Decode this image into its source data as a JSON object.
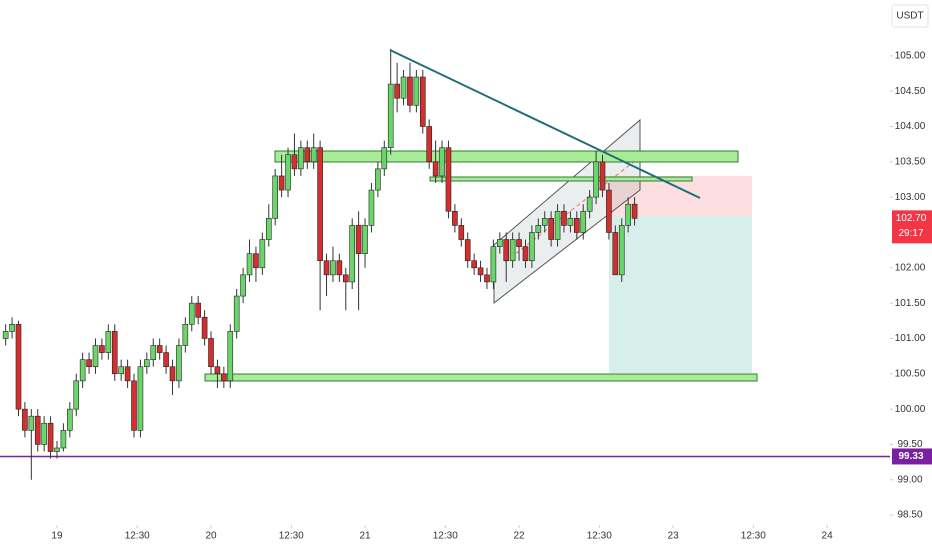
{
  "chart_data": {
    "type": "candlestick",
    "currency": "USDT",
    "up_color": "#6ad66a",
    "down_color": "#d32f2f",
    "x": [
      -8,
      -7,
      -6,
      -5,
      -4,
      -3,
      -2,
      -1,
      0,
      1,
      2,
      3,
      4,
      5,
      6,
      7,
      8,
      9,
      10,
      11,
      12,
      13,
      14,
      15,
      16,
      17,
      18,
      19,
      20,
      21,
      22,
      23,
      24,
      25,
      26,
      27,
      28,
      29,
      30,
      31,
      32,
      33,
      34,
      35,
      36,
      37,
      38,
      39,
      40,
      41,
      42,
      43,
      44,
      45,
      46,
      47,
      48,
      49,
      50,
      51,
      52,
      53,
      54,
      55,
      56,
      57,
      58,
      59,
      60,
      61,
      62,
      63,
      64,
      65,
      66,
      67,
      68,
      69,
      70,
      71,
      72,
      73,
      74,
      75,
      76,
      77,
      78,
      79,
      80,
      81,
      82,
      83,
      84,
      85,
      86,
      87,
      88,
      89,
      90
    ],
    "open": [
      101.0,
      101.1,
      101.2,
      100.0,
      99.7,
      99.9,
      99.5,
      99.8,
      99.4,
      99.45,
      99.7,
      100.0,
      100.4,
      100.7,
      100.6,
      100.9,
      100.8,
      101.1,
      100.5,
      100.6,
      100.4,
      99.7,
      100.6,
      100.7,
      100.9,
      100.8,
      100.6,
      100.4,
      100.9,
      101.2,
      101.5,
      101.3,
      101.0,
      100.6,
      100.5,
      100.4,
      101.1,
      101.6,
      101.9,
      102.2,
      102.0,
      102.4,
      102.7,
      103.3,
      103.1,
      103.6,
      103.4,
      103.7,
      103.5,
      103.7,
      102.1,
      101.9,
      102.1,
      101.9,
      101.8,
      102.6,
      102.2,
      102.6,
      103.1,
      103.4,
      103.7,
      104.6,
      104.4,
      104.7,
      104.3,
      104.7,
      104.0,
      103.5,
      103.3,
      103.7,
      102.8,
      102.6,
      102.4,
      102.1,
      102.0,
      101.9,
      101.8,
      102.3,
      102.4,
      102.1,
      102.4,
      102.3,
      102.1,
      102.5,
      102.6,
      102.7,
      102.4,
      102.8,
      102.6,
      102.7,
      102.5,
      102.8,
      103.0,
      103.5,
      103.1,
      102.5,
      101.9,
      102.6,
      102.9
    ],
    "high": [
      101.2,
      101.3,
      101.25,
      100.1,
      100.0,
      100.0,
      99.9,
      99.9,
      99.55,
      99.8,
      100.1,
      100.5,
      100.8,
      100.8,
      101.0,
      101.0,
      101.2,
      101.2,
      100.7,
      100.7,
      100.5,
      100.7,
      100.8,
      101.0,
      101.0,
      100.9,
      100.7,
      101.0,
      101.3,
      101.6,
      101.6,
      101.4,
      101.1,
      100.7,
      100.6,
      101.2,
      101.7,
      102.0,
      102.4,
      102.3,
      102.5,
      102.9,
      103.4,
      103.6,
      103.7,
      103.9,
      103.8,
      103.8,
      103.9,
      103.8,
      102.2,
      102.3,
      102.2,
      102.0,
      102.7,
      102.8,
      102.7,
      103.2,
      103.5,
      103.8,
      105.1,
      104.9,
      104.8,
      104.9,
      104.8,
      104.8,
      104.1,
      103.8,
      103.8,
      103.8,
      102.9,
      102.7,
      102.5,
      102.2,
      102.1,
      102.0,
      102.4,
      102.5,
      102.5,
      102.5,
      102.5,
      102.4,
      102.6,
      102.7,
      102.8,
      102.8,
      102.9,
      102.9,
      102.8,
      102.8,
      102.9,
      103.1,
      103.65,
      103.6,
      103.2,
      102.6,
      102.7,
      103.0,
      103.0
    ],
    "low": [
      100.9,
      101.0,
      99.9,
      99.6,
      99.0,
      99.4,
      99.4,
      99.3,
      99.3,
      99.4,
      99.6,
      99.9,
      100.3,
      100.5,
      100.5,
      100.7,
      100.7,
      100.4,
      100.4,
      100.3,
      99.6,
      99.6,
      100.5,
      100.6,
      100.7,
      100.5,
      100.2,
      100.3,
      100.8,
      101.1,
      101.2,
      100.9,
      100.5,
      100.3,
      100.3,
      100.3,
      101.0,
      101.5,
      101.8,
      101.8,
      101.9,
      102.3,
      102.6,
      103.0,
      103.0,
      103.3,
      103.3,
      103.4,
      103.4,
      101.4,
      101.6,
      101.8,
      101.8,
      101.4,
      101.7,
      101.4,
      102.0,
      102.5,
      103.0,
      103.3,
      103.6,
      104.2,
      104.3,
      104.2,
      104.2,
      103.9,
      103.4,
      103.2,
      103.2,
      102.7,
      102.5,
      102.3,
      102.0,
      101.9,
      101.8,
      101.7,
      101.7,
      102.2,
      101.8,
      102.0,
      102.1,
      102.0,
      102.0,
      102.4,
      102.5,
      102.3,
      102.3,
      102.5,
      102.5,
      102.4,
      102.4,
      102.7,
      102.9,
      103.0,
      102.4,
      101.9,
      101.8,
      102.5,
      102.6
    ],
    "close": [
      101.1,
      101.2,
      100.0,
      99.7,
      99.9,
      99.5,
      99.8,
      99.4,
      99.45,
      99.7,
      100.0,
      100.4,
      100.7,
      100.6,
      100.9,
      100.8,
      101.1,
      100.5,
      100.6,
      100.4,
      99.7,
      100.6,
      100.7,
      100.9,
      100.8,
      100.6,
      100.4,
      100.9,
      101.2,
      101.5,
      101.3,
      101.0,
      100.6,
      100.5,
      100.4,
      101.1,
      101.6,
      101.9,
      102.2,
      102.0,
      102.4,
      102.7,
      103.3,
      103.1,
      103.6,
      103.4,
      103.7,
      103.5,
      103.7,
      102.1,
      101.9,
      102.1,
      101.9,
      101.8,
      102.6,
      102.2,
      102.6,
      103.1,
      103.4,
      103.7,
      104.6,
      104.4,
      104.7,
      104.3,
      104.7,
      104.0,
      103.5,
      103.3,
      103.7,
      102.8,
      102.6,
      102.4,
      102.1,
      102.0,
      101.9,
      101.8,
      102.3,
      102.4,
      102.1,
      102.4,
      102.3,
      102.1,
      102.5,
      102.6,
      102.7,
      102.4,
      102.8,
      102.6,
      102.7,
      102.5,
      102.8,
      103.0,
      103.5,
      103.1,
      102.5,
      101.9,
      102.6,
      102.9,
      102.7
    ],
    "xlim": [
      -8.88,
      129.8
    ],
    "xticks": [
      {
        "value": 0,
        "label": "19"
      },
      {
        "value": 12.5,
        "label": "12:30"
      },
      {
        "value": 24,
        "label": "20"
      },
      {
        "value": 36.5,
        "label": "12:30"
      },
      {
        "value": 48,
        "label": "21"
      },
      {
        "value": 60.5,
        "label": "12:30"
      },
      {
        "value": 72,
        "label": "22"
      },
      {
        "value": 84.5,
        "label": "12:30"
      },
      {
        "value": 96,
        "label": "23"
      },
      {
        "value": 108.5,
        "label": "12:30"
      },
      {
        "value": 120,
        "label": "24"
      }
    ],
    "ylim": [
      98.36,
      105.79
    ],
    "yticks": [
      {
        "value": 98.5,
        "label": "98.50"
      },
      {
        "value": 99,
        "label": "99.00"
      },
      {
        "value": 99.5,
        "label": "99.50"
      },
      {
        "value": 100,
        "label": "100.00"
      },
      {
        "value": 100.5,
        "label": "100.50"
      },
      {
        "value": 101,
        "label": "101.00"
      },
      {
        "value": 101.5,
        "label": "101.50"
      },
      {
        "value": 102,
        "label": "102.00"
      },
      {
        "value": 103,
        "label": "103.00"
      },
      {
        "value": 103.5,
        "label": "103.50"
      },
      {
        "value": 104,
        "label": "104.00"
      },
      {
        "value": 104.5,
        "label": "104.50"
      },
      {
        "value": 105,
        "label": "105.00"
      }
    ],
    "horizontal_line": {
      "value": 99.33,
      "color": "#7b1fa2"
    },
    "last_price": {
      "value": 102.7,
      "label": "102.70",
      "color": "#f23645"
    },
    "countdown": "29:17"
  }
}
